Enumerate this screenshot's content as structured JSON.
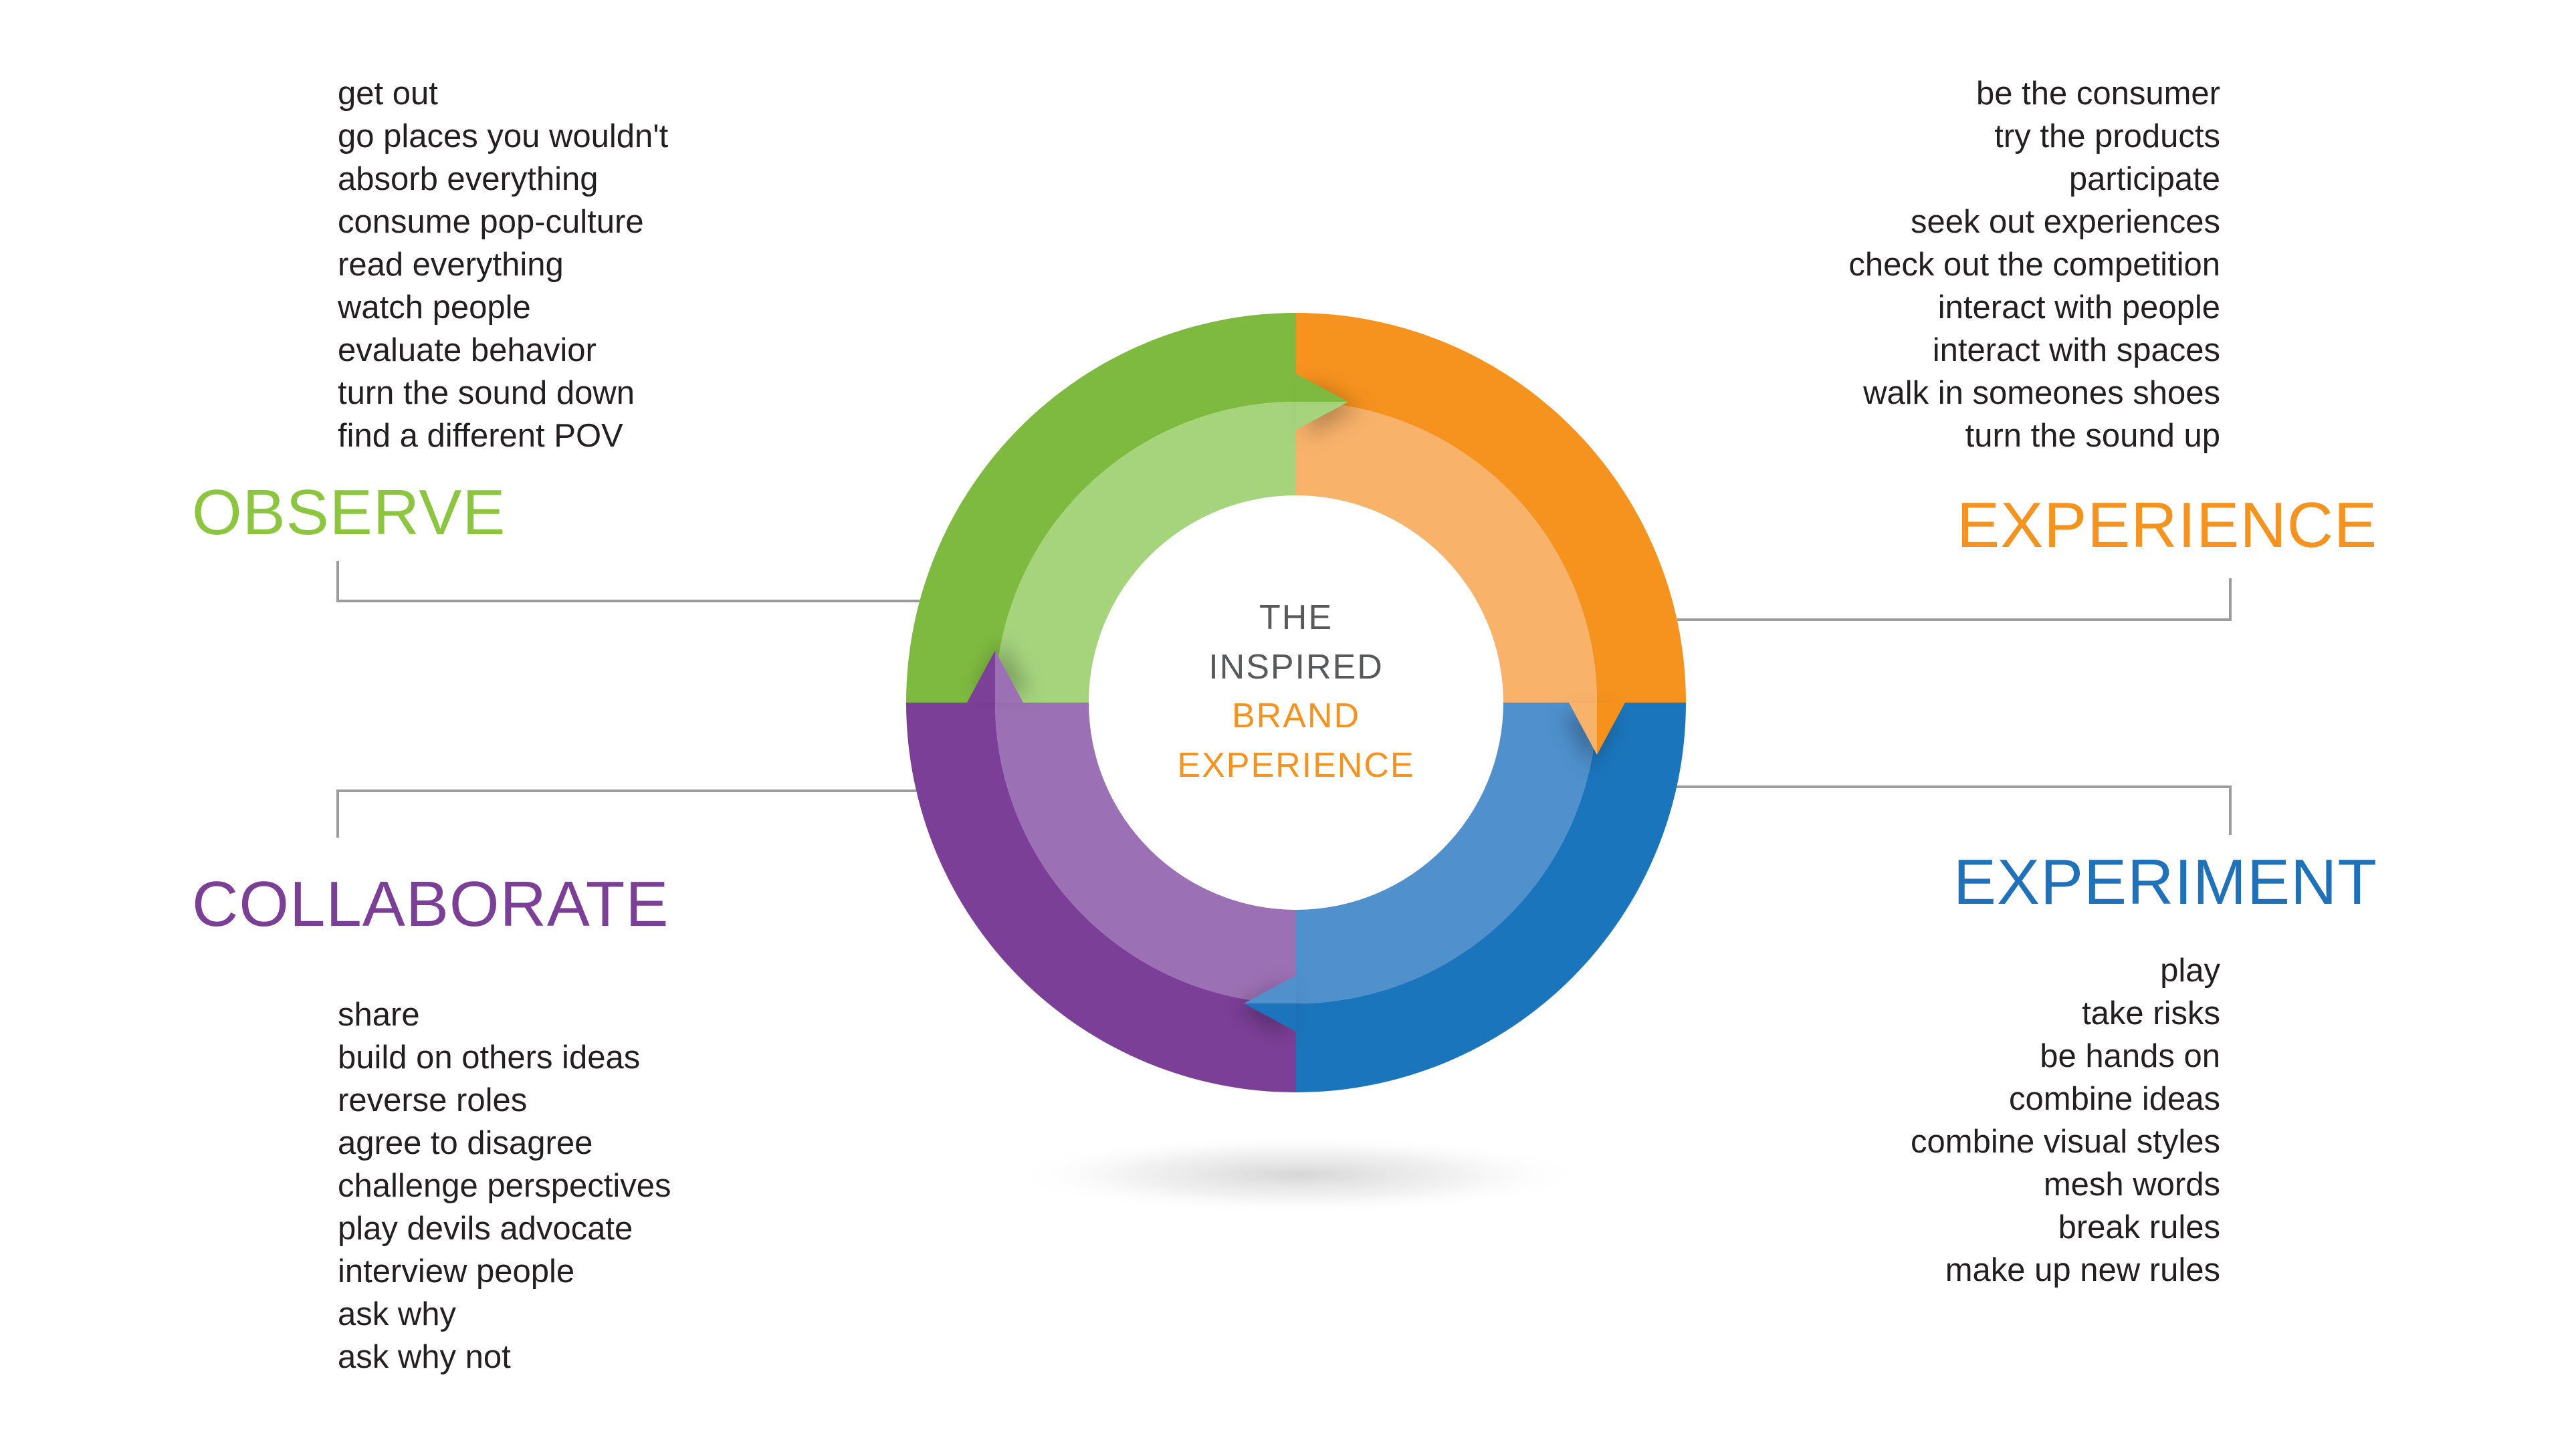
{
  "center": {
    "line1": "THE",
    "line2": "INSPIRED",
    "line3": "BRAND",
    "line4": "EXPERIENCE"
  },
  "quadrants": {
    "observe": {
      "label": "OBSERVE",
      "items": [
        "get out",
        "go places you wouldn't",
        "absorb everything",
        "consume pop-culture",
        "read everything",
        "watch people",
        "evaluate behavior",
        "turn the sound down",
        "find a different POV"
      ]
    },
    "experience": {
      "label": "EXPERIENCE",
      "items": [
        "be the consumer",
        "try the products",
        "participate",
        "seek out experiences",
        "check out the competition",
        "interact with people",
        "interact with spaces",
        "walk in someones shoes",
        "turn the sound up"
      ]
    },
    "experiment": {
      "label": "EXPERIMENT",
      "items": [
        "play",
        "take risks",
        "be hands on",
        "combine ideas",
        "combine visual styles",
        "mesh words",
        "break rules",
        "make up new rules"
      ]
    },
    "collaborate": {
      "label": "COLLABORATE",
      "items": [
        "share",
        "build on others ideas",
        "reverse roles",
        "agree to disagree",
        "challenge perspectives",
        "play devils advocate",
        "interview people",
        "ask why",
        "ask why not"
      ]
    }
  },
  "colors": {
    "green_dark": "#7eba40",
    "green_light": "#a6d47d",
    "green_label": "#8cc63f",
    "orange_dark": "#f6921e",
    "orange_light": "#f8b26a",
    "orange_label": "#f6921e",
    "blue_dark": "#1b75bc",
    "blue_light": "#4f90cd",
    "blue_label": "#1f72b9",
    "purple_dark": "#7c3f98",
    "purple_light": "#9b70b4",
    "purple_label": "#7c3f98",
    "center_gray": "#58595b",
    "list_text": "#231f20",
    "connector": "#9c9c9c"
  }
}
